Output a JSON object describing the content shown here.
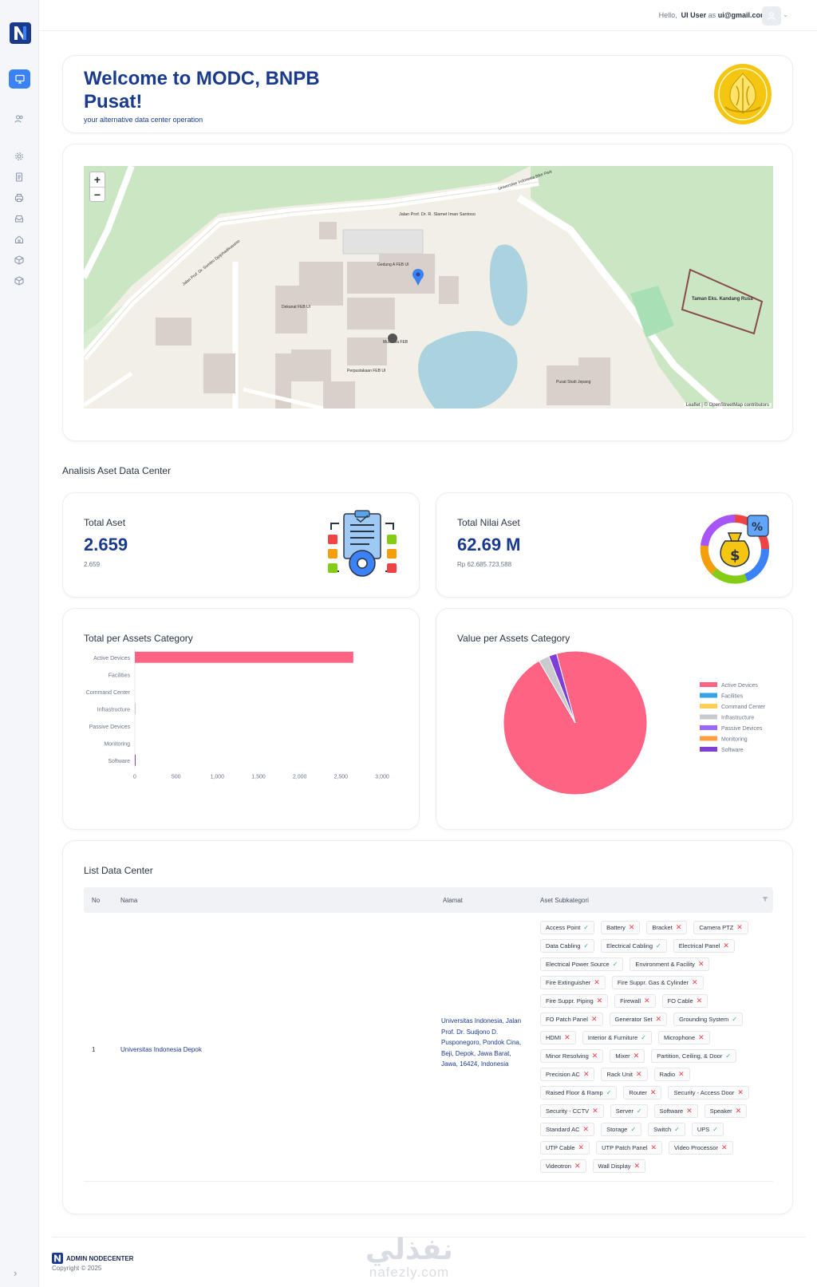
{
  "user": {
    "hello": "Hello,",
    "name": "UI User",
    "as_text": "as",
    "email": "ui@gmail.com"
  },
  "welcome": {
    "title": "Welcome to MODC, BNPB Pusat!",
    "subtitle": "your alternative data center operation"
  },
  "map": {
    "zoom_in": "+",
    "zoom_out": "−",
    "attribution": "Leaflet | © OpenStreetMap contributors",
    "labels": {
      "road_top": "Jalan Prof. Dr. R. Slamet Iman Santoso",
      "road_park": "Universitas Indonesia Bike Park",
      "road_diag": "Jalan Prof. Dr. Sumitro Djojohadikusumo",
      "gedung_a": "Gedung A FEB UI",
      "dekanat": "Dekanat FEB UI",
      "musholla": "Musholla FEB",
      "perpustakaan": "Perpustakaan FEB UI",
      "taman": "Taman Eks. Kandang Rusa",
      "pusat_studi": "Pusat Studi Jepang"
    }
  },
  "analisis": {
    "title": "Analisis Aset Data Center"
  },
  "stats": {
    "total_aset": {
      "label": "Total Aset",
      "value": "2.659",
      "sub": "2.659"
    },
    "total_nilai": {
      "label": "Total Nilai Aset",
      "value": "62.69 M",
      "sub": "Rp 62.685.723.588"
    }
  },
  "colors": {
    "accent": "#3b82f6",
    "brand": "#1a3a8b",
    "danger": "#ef3e4a",
    "success": "#33b07a"
  },
  "chart_data": [
    {
      "type": "bar",
      "orientation": "horizontal",
      "title": "Total per Assets Category",
      "categories": [
        "Active Devices",
        "Facilities",
        "Command Center",
        "Infrastructure",
        "Passive Devices",
        "Monitoring",
        "Software"
      ],
      "values": [
        2650,
        0,
        0,
        8,
        0,
        0,
        1
      ],
      "xlim": [
        0,
        3000
      ],
      "xticks": [
        0,
        500,
        1000,
        1500,
        2000,
        2500,
        3000
      ],
      "xtick_labels": [
        "0",
        "500",
        "1,000",
        "1,500",
        "2,000",
        "2,500",
        "3,000"
      ],
      "colors": [
        "#ff6384",
        "#36a2eb",
        "#ffce56",
        "#c9cbcf",
        "#9966ff",
        "#ff9f40",
        "#7e3fd6"
      ]
    },
    {
      "type": "pie",
      "title": "Value per Assets Category",
      "categories": [
        "Active Devices",
        "Facilities",
        "Command Center",
        "Infrastructure",
        "Passive Devices",
        "Monitoring",
        "Software"
      ],
      "values": [
        95.8,
        0,
        0,
        2.4,
        0,
        0,
        1.8
      ],
      "colors": [
        "#ff6384",
        "#36a2eb",
        "#ffce56",
        "#c9cbcf",
        "#9966ff",
        "#ff9f40",
        "#7e3fd6"
      ],
      "legend": "right"
    }
  ],
  "list": {
    "title": "List Data Center",
    "headers": {
      "no": "No",
      "nama": "Nama",
      "alamat": "Alamat",
      "aset": "Aset Subkategori"
    },
    "rows": [
      {
        "no": "1",
        "nama": "Universitas Indonesia Depok",
        "alamat": "Universitas Indonesia, Jalan Prof. Dr. Sudjono D. Pusponegoro, Pondok Cina, Beji, Depok, Jawa Barat, Jawa, 16424, Indonesia",
        "tags": [
          {
            "label": "Access Point",
            "ok": true
          },
          {
            "label": "Battery",
            "ok": false
          },
          {
            "label": "Bracket",
            "ok": false
          },
          {
            "label": "Camera PTZ",
            "ok": false
          },
          {
            "label": "Data Cabling",
            "ok": true
          },
          {
            "label": "Electrical Cabling",
            "ok": true
          },
          {
            "label": "Electrical Panel",
            "ok": false
          },
          {
            "label": "Electrical Power Source",
            "ok": true
          },
          {
            "label": "Environment & Facility",
            "ok": false
          },
          {
            "label": "Fire Extinguisher",
            "ok": false
          },
          {
            "label": "Fire Suppr. Gas & Cylinder",
            "ok": false
          },
          {
            "label": "Fire Suppr. Piping",
            "ok": false
          },
          {
            "label": "Firewall",
            "ok": false
          },
          {
            "label": "FO Cable",
            "ok": false
          },
          {
            "label": "FO Patch Panel",
            "ok": false
          },
          {
            "label": "Generator Set",
            "ok": false
          },
          {
            "label": "Grounding System",
            "ok": true
          },
          {
            "label": "HDMI",
            "ok": false
          },
          {
            "label": "Interior & Furniture",
            "ok": true
          },
          {
            "label": "Microphone",
            "ok": false
          },
          {
            "label": "Minor Resolving",
            "ok": false
          },
          {
            "label": "Mixer",
            "ok": false
          },
          {
            "label": "Partition, Ceiling, & Door",
            "ok": true
          },
          {
            "label": "Precision AC",
            "ok": false
          },
          {
            "label": "Rack Unit",
            "ok": false
          },
          {
            "label": "Radio",
            "ok": false
          },
          {
            "label": "Raised Floor & Ramp",
            "ok": true
          },
          {
            "label": "Router",
            "ok": false
          },
          {
            "label": "Security - Access Door",
            "ok": false
          },
          {
            "label": "Security - CCTV",
            "ok": false
          },
          {
            "label": "Server",
            "ok": true
          },
          {
            "label": "Software",
            "ok": false
          },
          {
            "label": "Speaker",
            "ok": false
          },
          {
            "label": "Standard AC",
            "ok": false
          },
          {
            "label": "Storage",
            "ok": true
          },
          {
            "label": "Switch",
            "ok": true
          },
          {
            "label": "UPS",
            "ok": true
          },
          {
            "label": "UTP Cable",
            "ok": false
          },
          {
            "label": "UTP Patch Panel",
            "ok": false
          },
          {
            "label": "Video Processor",
            "ok": false
          },
          {
            "label": "Videotron",
            "ok": false
          },
          {
            "label": "Wall Display",
            "ok": false
          }
        ]
      }
    ]
  },
  "footer": {
    "brand": "ADMIN NODECENTER",
    "copyright": "Copyright © 2025"
  },
  "watermark": {
    "arabic": "نفذلي",
    "latin": "nafezly.com"
  }
}
